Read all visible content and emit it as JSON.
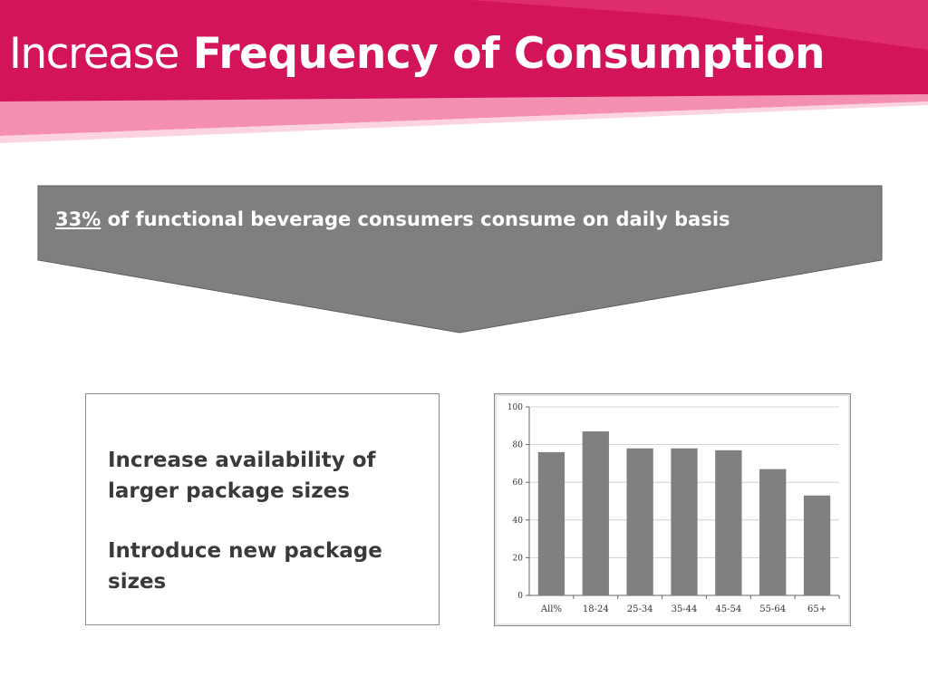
{
  "slide": {
    "title_regular": "Increase",
    "title_bold": "Frequency of Consumption",
    "accent_color": "#d4145a",
    "accent_light": "#f48fb1"
  },
  "callout": {
    "percentage": "33%",
    "text": "of functional beverage consumers consume on daily basis",
    "fill_color": "#7f7f7f"
  },
  "recommendations": [
    "Increase availability of larger package sizes",
    "Introduce new package sizes"
  ],
  "chart_data": {
    "type": "bar",
    "categories": [
      "All%",
      "18-24",
      "25-34",
      "35-44",
      "45-54",
      "55-64",
      "65+"
    ],
    "values": [
      76,
      87,
      78,
      78,
      77,
      67,
      53
    ],
    "title": "",
    "xlabel": "",
    "ylabel": "",
    "ylim": [
      0,
      100
    ],
    "yticks": [
      0,
      20,
      40,
      60,
      80,
      100
    ],
    "grid": true,
    "legend": "none",
    "bar_color": "#808080"
  }
}
